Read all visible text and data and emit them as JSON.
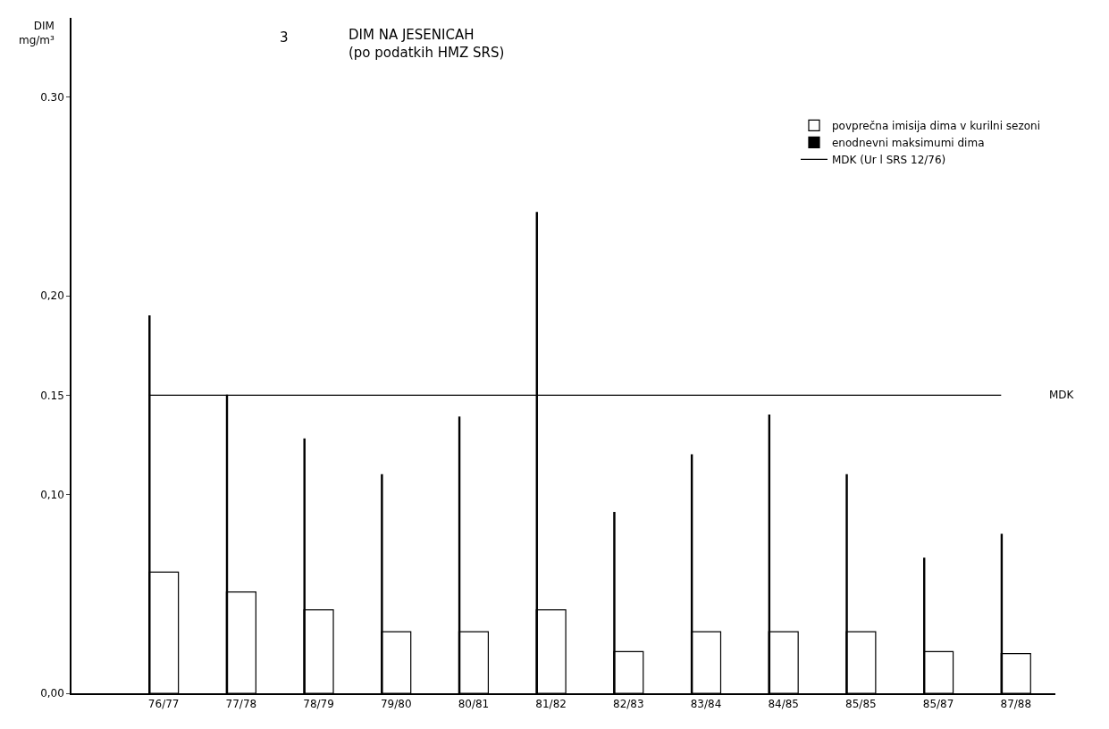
{
  "chart_data": {
    "type": "bar",
    "title": "DIM NA JESENICAH",
    "subtitle": "(po podatkih HMZ SRS)",
    "ylabel": "DIM mg/m³",
    "annotations": [
      "3",
      "MDK"
    ],
    "categories": [
      "76/77",
      "77/78",
      "78/79",
      "79/80",
      "80/81",
      "81/82",
      "82/83",
      "83/84",
      "84/85",
      "85/85",
      "85/87",
      "87/88"
    ],
    "series": [
      {
        "name": "povprečna imisija dima v kurilni sezoni",
        "color": "#ffffff",
        "values": [
          0.061,
          0.051,
          0.042,
          0.031,
          0.031,
          0.042,
          0.021,
          0.031,
          0.031,
          0.031,
          0.021,
          0.02
        ]
      },
      {
        "name": "enodnevni maksimumi dima",
        "type": "bar",
        "color": "#000000",
        "values": [
          0.19,
          0.15,
          0.128,
          0.11,
          0.139,
          0.242,
          0.091,
          0.12,
          0.14,
          0.11,
          0.068,
          0.08
        ]
      },
      {
        "name": "MDK (Ur l SRS 12/76)",
        "type": "line",
        "color": "#000000",
        "values": [
          0.15,
          0.15,
          0.15,
          0.15,
          0.15,
          0.15,
          0.15,
          0.15,
          0.15,
          0.15,
          0.15,
          0.15
        ]
      }
    ],
    "ylim": [
      0,
      0.34
    ],
    "yticks": [
      {
        "value": 0,
        "label": "0,00"
      },
      {
        "value": 0.1,
        "label": "0,10"
      },
      0.15,
      {
        "value": 0.2,
        "label": "0,20"
      },
      {
        "value": 0.3,
        "label": "0.30"
      }
    ],
    "legend": "top right",
    "marker": "none"
  }
}
